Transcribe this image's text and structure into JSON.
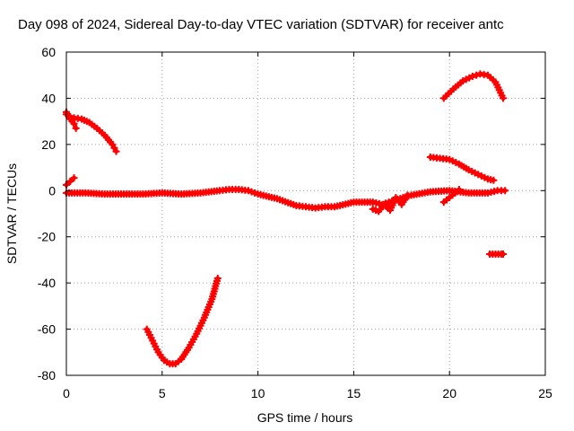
{
  "chart_data": {
    "type": "scatter",
    "title": "Day 098 of 2024, Sidereal Day-to-day VTEC variation (SDTVAR) for receiver antc",
    "xlabel": "GPS time / hours",
    "ylabel": "SDTVAR / TECUs",
    "xlim": [
      0,
      25
    ],
    "ylim": [
      -80,
      60
    ],
    "xticks": [
      0,
      5,
      10,
      15,
      20,
      25
    ],
    "yticks": [
      -80,
      -60,
      -40,
      -20,
      0,
      20,
      40,
      60
    ],
    "grid": true,
    "legend": "none",
    "marker": "plus",
    "color": "#ff0000",
    "series": [
      {
        "name": "main-band",
        "x": [
          0.0,
          1.0,
          2.0,
          3.0,
          4.0,
          5.0,
          6.0,
          7.0,
          8.0,
          8.5,
          9.0,
          9.5,
          10.0,
          11.0,
          12.0,
          12.5,
          13.0,
          13.5,
          14.0,
          15.0,
          16.0,
          16.5,
          17.0,
          18.0,
          19.0,
          20.0,
          21.0,
          22.0,
          22.5,
          22.9
        ],
        "y": [
          -1.0,
          -1.0,
          -1.5,
          -1.5,
          -1.5,
          -1.0,
          -1.5,
          -1.0,
          0.0,
          0.5,
          0.5,
          0.0,
          -1.5,
          -3.5,
          -6.5,
          -7.0,
          -7.5,
          -7.0,
          -7.0,
          -5.0,
          -5.0,
          -6.0,
          -4.5,
          -2.0,
          -0.5,
          0.0,
          -1.0,
          -1.0,
          0.0,
          0.0
        ]
      },
      {
        "name": "arc-top-left",
        "x": [
          0.0,
          0.2,
          0.4,
          0.8,
          1.2,
          1.6,
          2.0,
          2.4,
          2.6
        ],
        "y": [
          33.0,
          32.0,
          31.5,
          31.0,
          29.5,
          27.0,
          24.0,
          20.0,
          17.0
        ]
      },
      {
        "name": "start-spike-down",
        "x": [
          0.0,
          0.2,
          0.4,
          0.5
        ],
        "y": [
          34.0,
          31.0,
          29.0,
          27.0
        ]
      },
      {
        "name": "start-spike-up",
        "x": [
          0.0,
          0.2,
          0.4
        ],
        "y": [
          2.5,
          4.0,
          5.5
        ]
      },
      {
        "name": "v-dip",
        "x": [
          4.2,
          4.5,
          4.8,
          5.1,
          5.4,
          5.7,
          6.0,
          6.4,
          6.8,
          7.2,
          7.6,
          7.9
        ],
        "y": [
          -60.0,
          -65.0,
          -70.0,
          -73.5,
          -75.0,
          -75.0,
          -73.0,
          -68.0,
          -62.0,
          -55.0,
          -47.0,
          -38.0
        ]
      },
      {
        "name": "late-arc",
        "x": [
          19.7,
          20.2,
          20.7,
          21.2,
          21.6,
          22.0,
          22.4,
          22.8
        ],
        "y": [
          40.0,
          44.0,
          47.5,
          49.5,
          50.5,
          50.0,
          47.0,
          40.0
        ]
      },
      {
        "name": "late-descent",
        "x": [
          19.0,
          19.5,
          20.0,
          20.5,
          21.0,
          21.5,
          22.0,
          22.3
        ],
        "y": [
          14.5,
          14.0,
          13.5,
          11.5,
          9.0,
          7.0,
          5.0,
          4.5
        ]
      },
      {
        "name": "late-rise",
        "x": [
          19.7,
          20.0,
          20.3,
          20.5
        ],
        "y": [
          -5.0,
          -3.0,
          -1.0,
          0.5
        ]
      },
      {
        "name": "late-noise",
        "x": [
          16.0,
          16.3,
          16.6,
          16.9,
          17.2,
          17.5,
          17.8
        ],
        "y": [
          -8.0,
          -9.0,
          -6.0,
          -8.5,
          -3.0,
          -6.0,
          -2.0
        ]
      },
      {
        "name": "late-segment",
        "x": [
          22.1,
          22.4,
          22.7,
          22.8
        ],
        "y": [
          -27.5,
          -27.5,
          -27.5,
          -27.5
        ]
      }
    ]
  }
}
